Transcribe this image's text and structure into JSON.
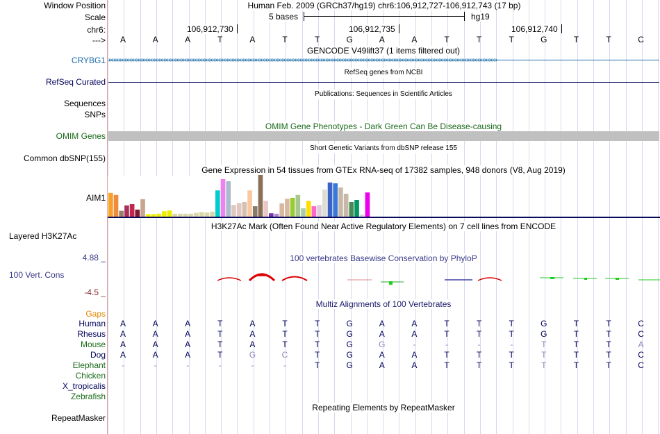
{
  "header": {
    "window_position_label": "Window Position",
    "scale_label": "Scale",
    "chr_label": "chr6:",
    "arrow_label": "--->",
    "assembly_text": "Human Feb. 2009 (GRCh37/hg19)   chr6:106,912,727-106,912,743 (17 bp)",
    "scale_text": "5 bases",
    "scale_db": "hg19",
    "positions": [
      "106,912,730",
      "106,912,735",
      "106,912,740"
    ]
  },
  "sequence": [
    "A",
    "A",
    "A",
    "T",
    "A",
    "T",
    "T",
    "G",
    "A",
    "A",
    "T",
    "T",
    "T",
    "G",
    "T",
    "T",
    "C"
  ],
  "tracks": {
    "gencode_title": "GENCODE V49lift37 (1 items filtered out)",
    "gencode_label": "CRYBG1",
    "refseq_title": "RefSeq genes from NCBI",
    "refseq_label": "RefSeq Curated",
    "publications_title": "Publications: Sequences in Scientific Articles",
    "sequences_label": "Sequences",
    "snps_label": "SNPs",
    "omim_title": "OMIM Gene Phenotypes - Dark Green Can Be Disease-causing",
    "omim_label": "OMIM Genes",
    "dbsnp_title": "Short Genetic Variants from dbSNP release 155",
    "dbsnp_label": "Common dbSNP(155)",
    "gtex_title": "Gene Expression in 54 tissues from GTEx RNA-seq of 17382 samples, 948 donors (V8, Aug 2019)",
    "gtex_label": "AIM1",
    "h3k27ac_title": "H3K27Ac Mark (Often Found Near Active Regulatory Elements) on 7 cell lines from ENCODE",
    "h3k27ac_label": "Layered H3K27Ac",
    "cons_title": "100 vertebrates Basewise Conservation by PhyloP",
    "cons_label": "100 Vert. Cons",
    "cons_max": "4.88 _",
    "cons_min": "-4.5 _",
    "multiz_title": "Multiz Alignments of 100 Vertebrates",
    "gaps_label": "Gaps",
    "repeat_title": "Repeating Elements by RepeatMasker",
    "repeat_label": "RepeatMasker"
  },
  "gtex_bars": [
    {
      "h": 0.57,
      "c": "#f7a12a"
    },
    {
      "h": 0.52,
      "c": "#f08a3c"
    },
    {
      "h": 0.14,
      "c": "#9a7f6a"
    },
    {
      "h": 0.27,
      "c": "#aa2f5c"
    },
    {
      "h": 0.3,
      "c": "#c0264e"
    },
    {
      "h": 0.17,
      "c": "#7e1a34"
    },
    {
      "h": 0.42,
      "c": "#c7a58f"
    },
    {
      "h": 0.06,
      "c": "#eeee00"
    },
    {
      "h": 0.06,
      "c": "#eeee00"
    },
    {
      "h": 0.07,
      "c": "#eeee00"
    },
    {
      "h": 0.13,
      "c": "#eeee00"
    },
    {
      "h": 0.15,
      "c": "#eeee00"
    },
    {
      "h": 0.07,
      "c": "#d8d8a8"
    },
    {
      "h": 0.07,
      "c": "#d8d8a8"
    },
    {
      "h": 0.07,
      "c": "#d8d8a8"
    },
    {
      "h": 0.07,
      "c": "#d8d8a8"
    },
    {
      "h": 0.09,
      "c": "#d8d8a8"
    },
    {
      "h": 0.11,
      "c": "#d8d8a8"
    },
    {
      "h": 0.1,
      "c": "#d8d8a8"
    },
    {
      "h": 0.12,
      "c": "#d8d8a8"
    },
    {
      "h": 0.63,
      "c": "#00cccc"
    },
    {
      "h": 0.9,
      "c": "#ee82ee"
    },
    {
      "h": 0.85,
      "c": "#aabbcc"
    },
    {
      "h": 0.28,
      "c": "#e0c8c0"
    },
    {
      "h": 0.33,
      "c": "#e0c8c0"
    },
    {
      "h": 0.35,
      "c": "#d8c0b0"
    },
    {
      "h": 0.63,
      "c": "#f8c8a0"
    },
    {
      "h": 0.25,
      "c": "#8a7a6a"
    },
    {
      "h": 1.0,
      "c": "#8a7058"
    },
    {
      "h": 0.38,
      "c": "#eac8c8"
    },
    {
      "h": 0.08,
      "c": "#7733aa"
    },
    {
      "h": 0.07,
      "c": "#b08ad8"
    },
    {
      "h": 0.32,
      "c": "#d8b8a0"
    },
    {
      "h": 0.43,
      "c": "#d8b8a0"
    },
    {
      "h": 0.45,
      "c": "#99cc33"
    },
    {
      "h": 0.52,
      "c": "#a8c890"
    },
    {
      "h": 0.2,
      "c": "#aacca8"
    },
    {
      "h": 0.38,
      "c": "#ffdd00"
    },
    {
      "h": 0.25,
      "c": "#ff66cc"
    },
    {
      "h": 0.28,
      "c": "#ddccdd"
    },
    {
      "h": 0.65,
      "c": "#ddddd0"
    },
    {
      "h": 0.82,
      "c": "#3d62c6"
    },
    {
      "h": 0.8,
      "c": "#3a78d8"
    },
    {
      "h": 0.7,
      "c": "#c8b8a8"
    },
    {
      "h": 0.55,
      "c": "#c8b8a8"
    },
    {
      "h": 0.35,
      "c": "#4a8a5a"
    },
    {
      "h": 0.4,
      "c": "#009a60"
    },
    {
      "h": 0.05,
      "c": "#d8d8d8"
    },
    {
      "h": 0.58,
      "c": "#ee00ee"
    }
  ],
  "multiz": {
    "species": [
      {
        "name": "Human",
        "color": "#00005a",
        "bases": [
          "A",
          "A",
          "A",
          "T",
          "A",
          "T",
          "T",
          "G",
          "A",
          "A",
          "T",
          "T",
          "T",
          "G",
          "T",
          "T",
          "C"
        ],
        "light": []
      },
      {
        "name": "Rhesus",
        "color": "#00005a",
        "bases": [
          "A",
          "A",
          "A",
          "T",
          "A",
          "T",
          "T",
          "G",
          "A",
          "A",
          "T",
          "T",
          "T",
          "G",
          "T",
          "T",
          "C"
        ],
        "light": []
      },
      {
        "name": "Mouse",
        "color": "#1a6a1a",
        "bases": [
          "A",
          "A",
          "A",
          "T",
          "A",
          "T",
          "T",
          "G",
          "G",
          "-",
          "-",
          "-",
          "-",
          "T",
          "T",
          "T",
          "A"
        ],
        "light": [
          8,
          9,
          10,
          11,
          12,
          13,
          16
        ]
      },
      {
        "name": "Dog",
        "color": "#00005a",
        "bases": [
          "A",
          "A",
          "A",
          "T",
          "G",
          "C",
          "T",
          "G",
          "A",
          "A",
          "T",
          "T",
          "T",
          "T",
          "T",
          "T",
          "C"
        ],
        "light": [
          4,
          5,
          13
        ]
      },
      {
        "name": "Elephant",
        "color": "#1a6a1a",
        "bases": [
          "-",
          "-",
          "-",
          "-",
          "-",
          "-",
          "T",
          "G",
          "A",
          "A",
          "T",
          "T",
          "T",
          "T",
          "T",
          "T",
          "C"
        ],
        "light": [
          0,
          1,
          2,
          3,
          4,
          5,
          13
        ]
      },
      {
        "name": "Chicken",
        "color": "#1a6a1a",
        "bases": [],
        "light": []
      },
      {
        "name": "X_tropicalis",
        "color": "#00005a",
        "bases": [],
        "light": []
      },
      {
        "name": "Zebrafish",
        "color": "#1a6a1a",
        "bases": [],
        "light": []
      }
    ]
  },
  "colors": {
    "gene_blue": "#1a6aa8",
    "refseq_navy": "#00005a",
    "omim_gray": "#c0c0c0",
    "cons_red": "#dd0000",
    "cons_green": "#22cc22",
    "gaps_orange": "#e28a00"
  }
}
